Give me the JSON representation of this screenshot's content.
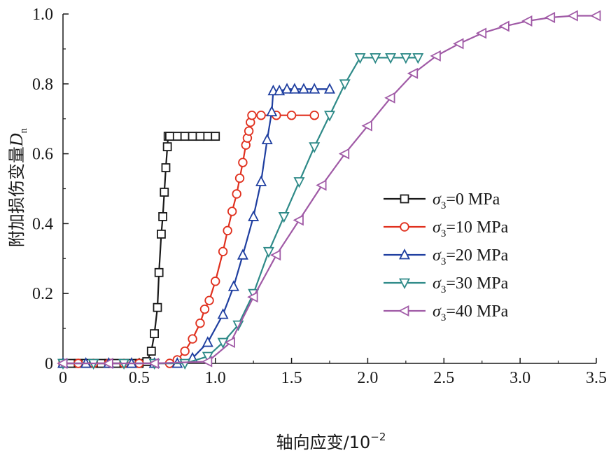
{
  "chart_data": {
    "type": "line",
    "xlabel": "轴向应变/10",
    "xlabel_exp": "−2",
    "ylabel": "附加损伤变量",
    "ylabel_var": "D",
    "ylabel_sub": "n",
    "xlim": [
      0,
      3.5
    ],
    "ylim": [
      0,
      1.0
    ],
    "xticks": [
      0,
      0.5,
      1.0,
      1.5,
      2.0,
      2.5,
      3.0,
      3.5
    ],
    "xtick_labels": [
      "0",
      "0.5",
      "1.0",
      "1.5",
      "2.0",
      "2.5",
      "3.0",
      "3.5"
    ],
    "yticks": [
      0,
      0.2,
      0.4,
      0.6,
      0.8,
      1.0
    ],
    "ytick_labels": [
      "0",
      "0.2",
      "0.4",
      "0.6",
      "0.8",
      "1.0"
    ],
    "legend_position": "center-right",
    "grid": false,
    "series": [
      {
        "name": "=0 MPa",
        "sym": "σ",
        "sub": "3",
        "color": "#1a1a1a",
        "marker": "square",
        "x": [
          0,
          0.05,
          0.1,
          0.15,
          0.2,
          0.25,
          0.3,
          0.35,
          0.4,
          0.45,
          0.5,
          0.55,
          0.58,
          0.6,
          0.62,
          0.63,
          0.645,
          0.655,
          0.665,
          0.675,
          0.685,
          0.69,
          0.7,
          0.75,
          0.8,
          0.85,
          0.9,
          0.95,
          1.0
        ],
        "y": [
          0,
          0,
          0,
          0,
          0,
          0,
          0,
          0,
          0,
          0,
          0,
          0.005,
          0.035,
          0.085,
          0.16,
          0.26,
          0.37,
          0.42,
          0.49,
          0.56,
          0.62,
          0.65,
          0.65,
          0.65,
          0.65,
          0.65,
          0.65,
          0.65,
          0.65
        ]
      },
      {
        "name": "=10 MPa",
        "sym": "σ",
        "sub": "3",
        "color": "#e0301e",
        "marker": "circle",
        "x": [
          0,
          0.1,
          0.2,
          0.3,
          0.4,
          0.5,
          0.6,
          0.7,
          0.75,
          0.8,
          0.85,
          0.9,
          0.93,
          0.96,
          1.0,
          1.05,
          1.08,
          1.11,
          1.14,
          1.16,
          1.18,
          1.2,
          1.21,
          1.22,
          1.23,
          1.24,
          1.3,
          1.4,
          1.5,
          1.65
        ],
        "y": [
          0,
          0,
          0,
          0,
          0,
          0,
          0,
          0,
          0.01,
          0.035,
          0.07,
          0.115,
          0.155,
          0.18,
          0.235,
          0.32,
          0.38,
          0.435,
          0.485,
          0.53,
          0.575,
          0.625,
          0.645,
          0.665,
          0.69,
          0.71,
          0.71,
          0.71,
          0.71,
          0.71
        ]
      },
      {
        "name": "=20 MPa",
        "sym": "σ",
        "sub": "3",
        "color": "#1f3fa0",
        "marker": "triangle-up",
        "x": [
          0,
          0.15,
          0.3,
          0.45,
          0.6,
          0.75,
          0.85,
          0.95,
          1.05,
          1.12,
          1.18,
          1.25,
          1.3,
          1.34,
          1.37,
          1.38,
          1.42,
          1.47,
          1.52,
          1.58,
          1.65,
          1.75
        ],
        "y": [
          0,
          0,
          0,
          0,
          0,
          0,
          0.015,
          0.06,
          0.14,
          0.22,
          0.31,
          0.42,
          0.52,
          0.64,
          0.72,
          0.78,
          0.78,
          0.785,
          0.785,
          0.785,
          0.785,
          0.785
        ]
      },
      {
        "name": "=30 MPa",
        "sym": "σ",
        "sub": "3",
        "color": "#2e8a88",
        "marker": "triangle-down",
        "x": [
          0,
          0.2,
          0.4,
          0.6,
          0.8,
          0.95,
          1.05,
          1.15,
          1.25,
          1.35,
          1.45,
          1.55,
          1.65,
          1.75,
          1.85,
          1.95,
          2.05,
          2.15,
          2.25,
          2.33
        ],
        "y": [
          0,
          0,
          0,
          0,
          0,
          0.02,
          0.06,
          0.11,
          0.2,
          0.32,
          0.42,
          0.52,
          0.62,
          0.71,
          0.8,
          0.875,
          0.875,
          0.875,
          0.875,
          0.875
        ]
      },
      {
        "name": "=40 MPa",
        "sym": "σ",
        "sub": "3",
        "color": "#a05aa6",
        "marker": "triangle-left",
        "x": [
          0,
          0.3,
          0.6,
          0.95,
          1.1,
          1.25,
          1.4,
          1.55,
          1.7,
          1.85,
          2.0,
          2.15,
          2.3,
          2.45,
          2.6,
          2.75,
          2.9,
          3.05,
          3.2,
          3.35,
          3.5
        ],
        "y": [
          0,
          0,
          0,
          0.005,
          0.06,
          0.19,
          0.31,
          0.41,
          0.51,
          0.6,
          0.68,
          0.76,
          0.83,
          0.88,
          0.915,
          0.945,
          0.965,
          0.98,
          0.99,
          0.995,
          0.995
        ]
      }
    ]
  }
}
